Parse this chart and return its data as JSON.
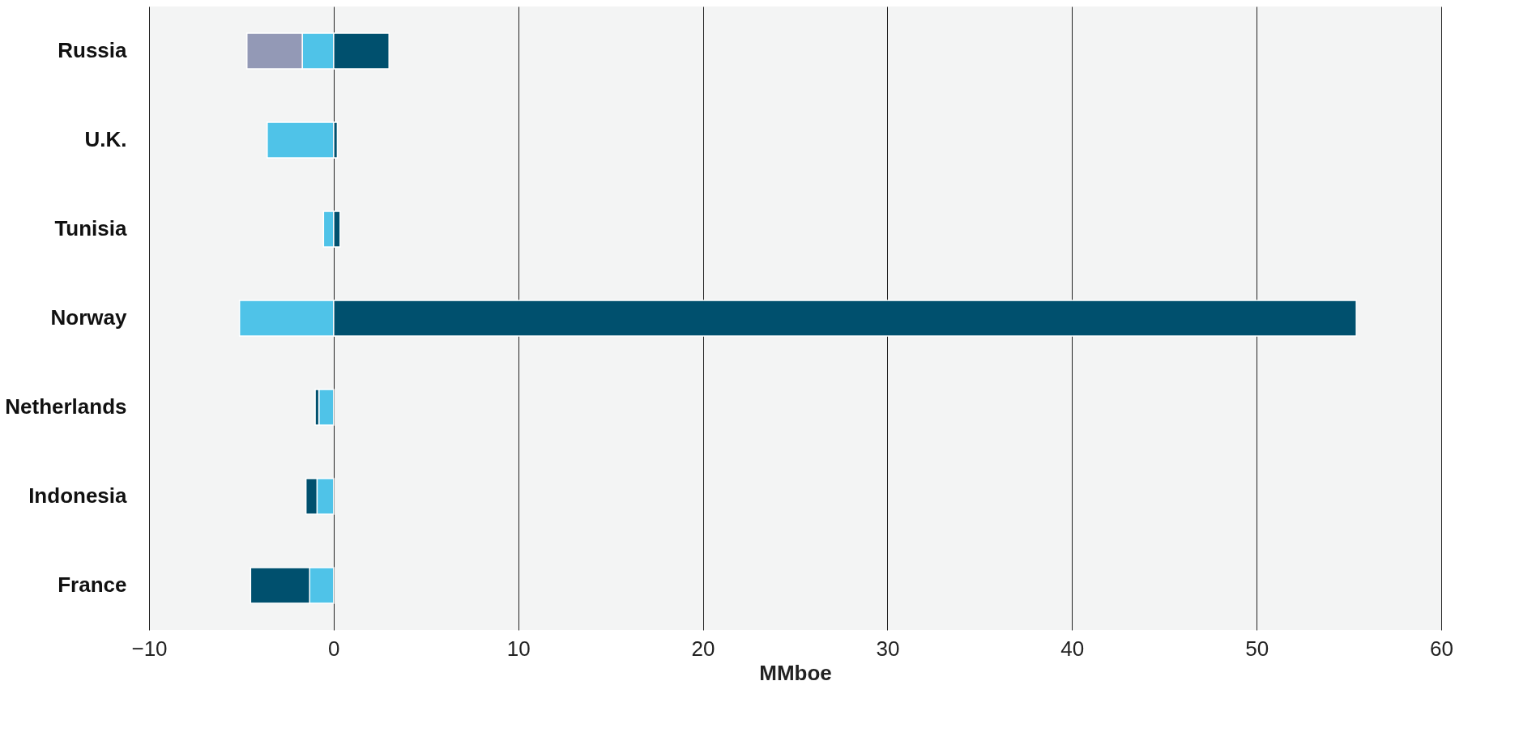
{
  "chart_data": {
    "type": "bar",
    "orientation": "horizontal",
    "stacked": true,
    "xlabel": "MMboe",
    "categories": [
      "Russia",
      "U.K.",
      "Tunisia",
      "Norway",
      "Netherlands",
      "Indonesia",
      "France"
    ],
    "series": [
      {
        "color": "#4fc3e8",
        "values": [
          -1.7,
          -3.6,
          -0.55,
          -5.1,
          -0.8,
          -0.9,
          -1.3
        ]
      },
      {
        "color": "#00506e",
        "values": [
          3.0,
          0.2,
          0.35,
          55.4,
          -0.2,
          -0.6,
          -3.2
        ]
      },
      {
        "color": "#9399b6",
        "values": [
          -3.0,
          null,
          null,
          null,
          null,
          null,
          null
        ]
      }
    ],
    "xlim": [
      -10,
      60
    ],
    "xticks": [
      -10,
      0,
      10,
      20,
      30,
      40,
      50,
      60
    ],
    "grid": "x",
    "legend": false
  }
}
